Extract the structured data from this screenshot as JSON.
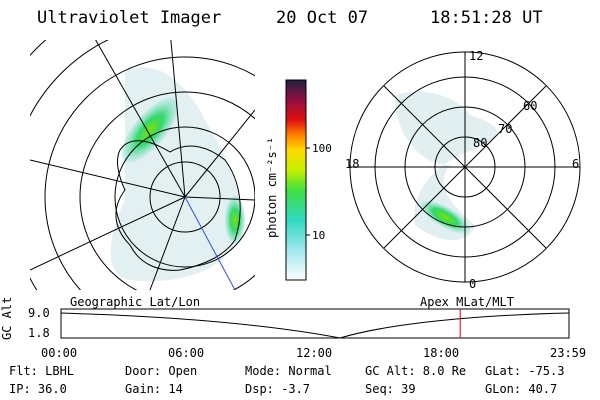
{
  "header": {
    "title": "Ultraviolet Imager",
    "date": "20 Oct 07",
    "time": "18:51:28 UT"
  },
  "colorbar": {
    "unit_label": "photon cm⁻²s⁻¹",
    "ticks": [
      "100",
      "10"
    ]
  },
  "polar_plot": {
    "lat_labels": [
      "80",
      "70",
      "60"
    ],
    "mlt_labels": [
      "12",
      "18",
      "6",
      "0"
    ]
  },
  "timeline": {
    "ylabel": "GC Alt",
    "ymax": "9.0",
    "ymin": "1.8",
    "left_title": "Geographic Lat/Lon",
    "right_title": "Apex MLat/MLT",
    "xticks": [
      "00:00",
      "06:00",
      "12:00",
      "18:00",
      "23:59"
    ],
    "marker_time_hours": 18.86
  },
  "info": {
    "filter": "Flt: LBHL",
    "ip": "IP: 36.0",
    "door": "Door: Open",
    "gain": "Gain: 14",
    "mode": "Mode: Normal",
    "dsp": "Dsp:   -3.7",
    "gc_alt": "GC Alt: 8.0 Re",
    "seq": "Seq: 39",
    "glat": "GLat: -75.3",
    "glon": "GLon:  40.7"
  },
  "colors": {
    "marker": "#e00000",
    "grid": "#000000"
  }
}
